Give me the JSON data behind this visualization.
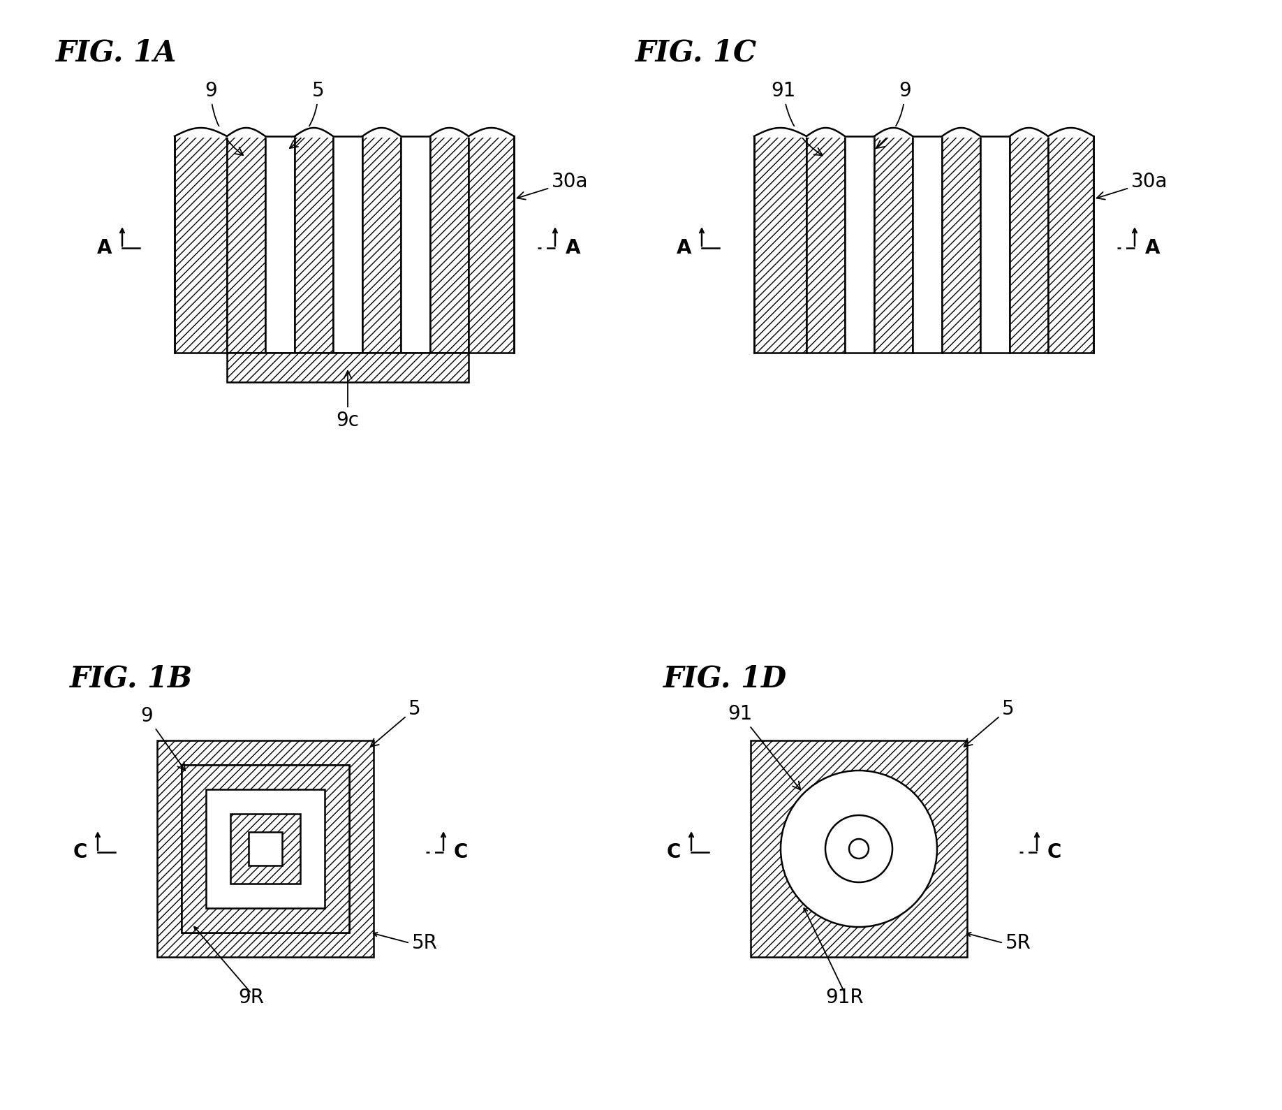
{
  "fig_labels": [
    "FIG. 1A",
    "FIG. 1B",
    "FIG. 1C",
    "FIG. 1D"
  ],
  "background_color": "#ffffff",
  "line_color": "#000000",
  "hatch_pattern": "///",
  "font_size_title": 30,
  "font_size_label": 20,
  "figsize": [
    18.36,
    15.89
  ],
  "dpi": 100,
  "xlim": [
    0,
    1836
  ],
  "ylim": [
    0,
    1589
  ]
}
